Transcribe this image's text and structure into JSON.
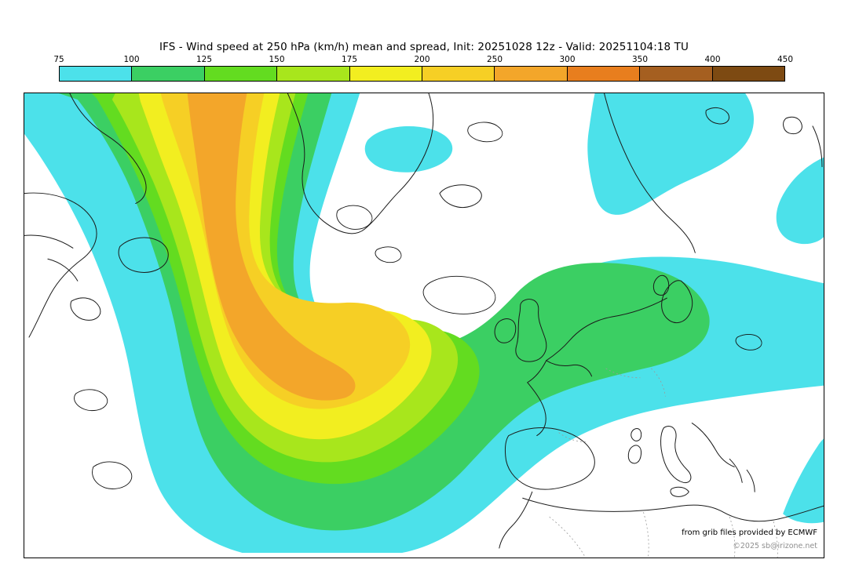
{
  "title": "IFS - Wind speed at 250 hPa (km/h) mean and spread, Init: 20251028 12z - Valid: 20251104:18 TU",
  "colorbar": {
    "tick_labels": [
      "75",
      "100",
      "125",
      "150",
      "175",
      "200",
      "250",
      "300",
      "350",
      "400",
      "450"
    ],
    "segment_colors": [
      "#4ce1ea",
      "#3bcf63",
      "#63dc20",
      "#a8e61c",
      "#f2ee20",
      "#f6cf25",
      "#f3a62a",
      "#e87e1e",
      "#a55f20",
      "#7d4a12"
    ]
  },
  "map": {
    "layer_colors": {
      "cyan": "#4ce1ea",
      "green": "#3bcf63",
      "chartreuse": "#63dc20",
      "yellowgreen": "#a8e61c",
      "yellow": "#f2ee20",
      "gold": "#f6cf25",
      "orange": "#f3a62a"
    }
  },
  "footer": {
    "credit": "from grib files provided by ECMWF",
    "copyright": "©2025 sb@irizone.net"
  },
  "chart_data": {
    "type": "heatmap",
    "title": "IFS - Wind speed at 250 hPa (km/h) mean and spread",
    "init": "20251028 12z",
    "valid": "20251104:18 TU",
    "units": "km/h",
    "contour_levels": [
      75,
      100,
      125,
      150,
      175,
      200,
      250,
      300,
      350,
      400,
      450
    ],
    "level_colors": [
      "#4ce1ea",
      "#3bcf63",
      "#63dc20",
      "#a8e61c",
      "#f2ee20",
      "#f6cf25",
      "#f3a62a",
      "#e87e1e",
      "#a55f20",
      "#7d4a12"
    ],
    "region": "North Atlantic and Europe",
    "features": [
      {
        "label": "jet-streak-maximum",
        "value_range_kmh": [
          250,
          300
        ],
        "location": "western North Atlantic, elongated core from eastern Canada sweeping south then east"
      },
      {
        "label": "jet-band",
        "value_range_kmh": [
          150,
          250
        ],
        "location": "broad curved band from northwest Atlantic across the central Atlantic, turning northeast toward the British Isles and central Europe"
      },
      {
        "label": "secondary-weak-flow",
        "value_range_kmh": [
          75,
          125
        ],
        "location": "patches over Greenland-Iceland area, Scandinavia, eastern Europe and far southeast of domain"
      },
      {
        "label": "calm-areas",
        "value_range_kmh": [
          0,
          75
        ],
        "location": "white areas: central subtropical Atlantic, Mediterranean and North Africa"
      }
    ]
  }
}
